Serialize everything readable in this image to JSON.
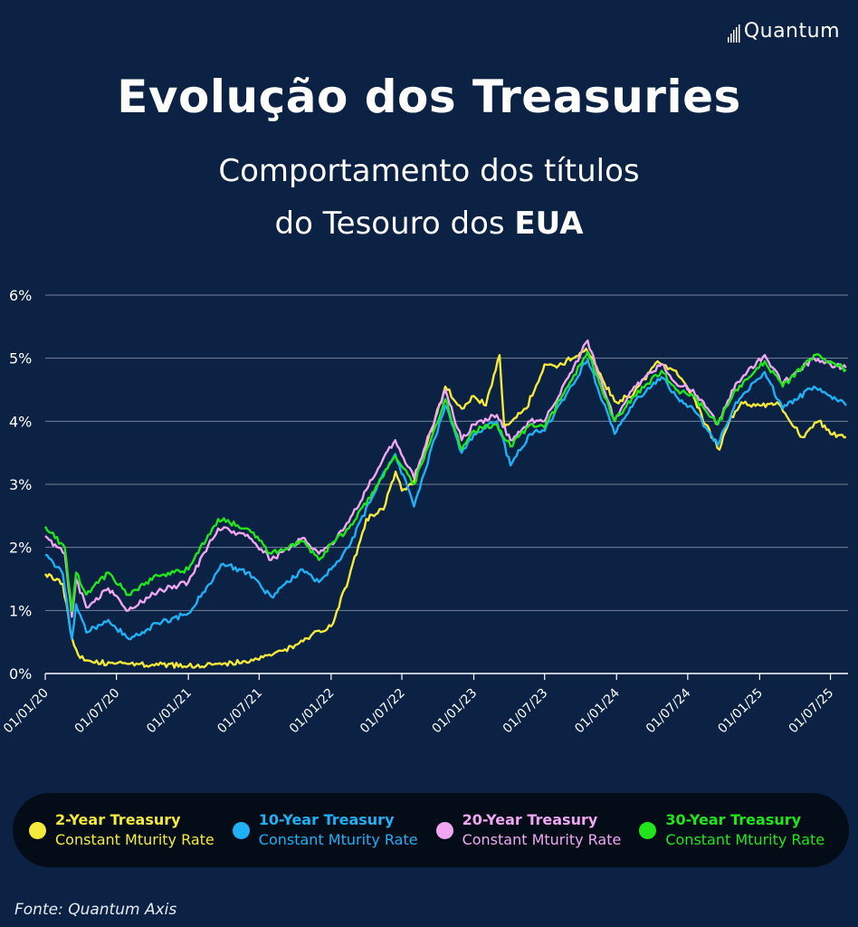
{
  "brand": {
    "name": "Quantum",
    "icon": "bar-logo-icon"
  },
  "header": {
    "title": "Evolução dos Treasuries",
    "subtitle_line1": "Comportamento dos títulos",
    "subtitle_line2_pre": "do Tesouro dos ",
    "subtitle_line2_bold": "EUA"
  },
  "legend": [
    {
      "name": "2-Year Treasury",
      "sub": "Constant Mturity Rate",
      "color": "#f5ea3b"
    },
    {
      "name": "10-Year Treasury",
      "sub": "Constant Mturity Rate",
      "color": "#1fb0f5"
    },
    {
      "name": "20-Year Treasury",
      "sub": "Constant Mturity Rate",
      "color": "#f0a6f0"
    },
    {
      "name": "30-Year Treasury",
      "sub": "Constant Mturity Rate",
      "color": "#22e61c"
    }
  ],
  "source": "Fonte: Quantum Axis",
  "chart_data": {
    "type": "line",
    "title": "Evolução dos Treasuries",
    "ylabel": "",
    "xlabel": "",
    "ylim": [
      0,
      6
    ],
    "xlim": [
      "2020-01-01",
      "2025-08-15"
    ],
    "y_ticks": [
      0,
      1,
      2,
      3,
      4,
      5,
      6
    ],
    "y_tick_labels": [
      "0%",
      "1%",
      "2%",
      "3%",
      "4%",
      "5%",
      "6%"
    ],
    "x_ticks": [
      "2020-01-01",
      "2020-07-01",
      "2021-01-01",
      "2021-07-01",
      "2022-01-01",
      "2022-07-01",
      "2023-01-01",
      "2023-07-01",
      "2024-01-01",
      "2024-07-01",
      "2025-01-01",
      "2025-07-01"
    ],
    "x_tick_labels": [
      "01/01/20",
      "01/07/20",
      "01/01/21",
      "01/07/21",
      "01/01/22",
      "01/07/22",
      "01/01/23",
      "01/07/23",
      "01/01/24",
      "01/07/24",
      "01/01/25",
      "01/07/25"
    ],
    "grid": true,
    "legend_position": "bottom",
    "series": [
      {
        "name": "2-Year Treasury",
        "color": "#f5ea3b",
        "points": [
          [
            "2020-01-01",
            1.58
          ],
          [
            "2020-02-15",
            1.42
          ],
          [
            "2020-03-10",
            0.55
          ],
          [
            "2020-03-25",
            0.3
          ],
          [
            "2020-05-01",
            0.18
          ],
          [
            "2020-07-01",
            0.16
          ],
          [
            "2020-10-01",
            0.14
          ],
          [
            "2021-01-01",
            0.12
          ],
          [
            "2021-04-01",
            0.16
          ],
          [
            "2021-07-01",
            0.22
          ],
          [
            "2021-10-01",
            0.45
          ],
          [
            "2021-12-01",
            0.68
          ],
          [
            "2022-01-01",
            0.75
          ],
          [
            "2022-02-15",
            1.5
          ],
          [
            "2022-04-01",
            2.45
          ],
          [
            "2022-05-15",
            2.6
          ],
          [
            "2022-06-15",
            3.2
          ],
          [
            "2022-07-01",
            2.9
          ],
          [
            "2022-08-01",
            3.05
          ],
          [
            "2022-09-01",
            3.6
          ],
          [
            "2022-10-20",
            4.55
          ],
          [
            "2022-12-01",
            4.2
          ],
          [
            "2023-01-01",
            4.4
          ],
          [
            "2023-02-01",
            4.25
          ],
          [
            "2023-03-08",
            5.05
          ],
          [
            "2023-03-20",
            3.9
          ],
          [
            "2023-04-15",
            4.05
          ],
          [
            "2023-05-15",
            4.2
          ],
          [
            "2023-07-01",
            4.9
          ],
          [
            "2023-08-01",
            4.85
          ],
          [
            "2023-10-15",
            5.15
          ],
          [
            "2023-12-01",
            4.6
          ],
          [
            "2024-01-01",
            4.3
          ],
          [
            "2024-02-15",
            4.45
          ],
          [
            "2024-04-15",
            4.95
          ],
          [
            "2024-06-01",
            4.8
          ],
          [
            "2024-07-15",
            4.4
          ],
          [
            "2024-08-15",
            3.95
          ],
          [
            "2024-09-20",
            3.55
          ],
          [
            "2024-10-15",
            4.0
          ],
          [
            "2024-11-15",
            4.3
          ],
          [
            "2025-01-01",
            4.25
          ],
          [
            "2025-02-15",
            4.3
          ],
          [
            "2025-04-01",
            3.9
          ],
          [
            "2025-04-20",
            3.75
          ],
          [
            "2025-06-01",
            4.0
          ],
          [
            "2025-07-01",
            3.8
          ],
          [
            "2025-08-10",
            3.75
          ]
        ]
      },
      {
        "name": "10-Year Treasury",
        "color": "#1fb0f5",
        "points": [
          [
            "2020-01-01",
            1.88
          ],
          [
            "2020-02-15",
            1.58
          ],
          [
            "2020-03-09",
            0.55
          ],
          [
            "2020-03-20",
            1.1
          ],
          [
            "2020-04-15",
            0.65
          ],
          [
            "2020-06-10",
            0.85
          ],
          [
            "2020-08-01",
            0.55
          ],
          [
            "2020-10-15",
            0.8
          ],
          [
            "2021-01-01",
            0.95
          ],
          [
            "2021-03-31",
            1.74
          ],
          [
            "2021-06-01",
            1.6
          ],
          [
            "2021-08-01",
            1.22
          ],
          [
            "2021-10-20",
            1.65
          ],
          [
            "2021-12-01",
            1.45
          ],
          [
            "2022-01-01",
            1.65
          ],
          [
            "2022-02-15",
            2.0
          ],
          [
            "2022-05-01",
            3.0
          ],
          [
            "2022-06-14",
            3.48
          ],
          [
            "2022-08-01",
            2.65
          ],
          [
            "2022-10-20",
            4.25
          ],
          [
            "2022-12-01",
            3.5
          ],
          [
            "2023-01-01",
            3.8
          ],
          [
            "2023-03-01",
            4.0
          ],
          [
            "2023-04-05",
            3.3
          ],
          [
            "2023-05-25",
            3.8
          ],
          [
            "2023-07-01",
            3.85
          ],
          [
            "2023-10-19",
            4.98
          ],
          [
            "2023-12-27",
            3.8
          ],
          [
            "2024-02-15",
            4.3
          ],
          [
            "2024-04-25",
            4.7
          ],
          [
            "2024-06-01",
            4.4
          ],
          [
            "2024-07-15",
            4.2
          ],
          [
            "2024-09-16",
            3.62
          ],
          [
            "2024-11-01",
            4.3
          ],
          [
            "2025-01-14",
            4.78
          ],
          [
            "2025-03-01",
            4.2
          ],
          [
            "2025-05-20",
            4.55
          ],
          [
            "2025-07-01",
            4.4
          ],
          [
            "2025-08-10",
            4.25
          ]
        ]
      },
      {
        "name": "20-Year Treasury",
        "color": "#f0a6f0",
        "points": [
          [
            "2020-01-01",
            2.18
          ],
          [
            "2020-02-20",
            1.9
          ],
          [
            "2020-03-09",
            0.9
          ],
          [
            "2020-03-20",
            1.5
          ],
          [
            "2020-04-15",
            1.05
          ],
          [
            "2020-06-10",
            1.35
          ],
          [
            "2020-08-01",
            1.0
          ],
          [
            "2020-10-15",
            1.3
          ],
          [
            "2021-01-01",
            1.45
          ],
          [
            "2021-03-18",
            2.3
          ],
          [
            "2021-06-01",
            2.2
          ],
          [
            "2021-08-01",
            1.8
          ],
          [
            "2021-10-20",
            2.15
          ],
          [
            "2021-12-01",
            1.9
          ],
          [
            "2022-01-01",
            2.05
          ],
          [
            "2022-02-15",
            2.4
          ],
          [
            "2022-05-01",
            3.25
          ],
          [
            "2022-06-14",
            3.7
          ],
          [
            "2022-08-01",
            3.1
          ],
          [
            "2022-10-20",
            4.5
          ],
          [
            "2022-12-01",
            3.7
          ],
          [
            "2023-01-01",
            3.95
          ],
          [
            "2023-03-01",
            4.1
          ],
          [
            "2023-04-05",
            3.7
          ],
          [
            "2023-05-25",
            4.0
          ],
          [
            "2023-07-01",
            4.0
          ],
          [
            "2023-10-19",
            5.28
          ],
          [
            "2023-12-27",
            4.0
          ],
          [
            "2024-02-15",
            4.55
          ],
          [
            "2024-04-25",
            4.9
          ],
          [
            "2024-06-01",
            4.6
          ],
          [
            "2024-07-15",
            4.5
          ],
          [
            "2024-09-16",
            3.95
          ],
          [
            "2024-11-01",
            4.6
          ],
          [
            "2025-01-14",
            5.05
          ],
          [
            "2025-03-01",
            4.6
          ],
          [
            "2025-05-20",
            5.0
          ],
          [
            "2025-07-01",
            4.9
          ],
          [
            "2025-08-10",
            4.85
          ]
        ]
      },
      {
        "name": "30-Year Treasury",
        "color": "#22e61c",
        "points": [
          [
            "2020-01-01",
            2.33
          ],
          [
            "2020-02-20",
            2.0
          ],
          [
            "2020-03-09",
            0.99
          ],
          [
            "2020-03-20",
            1.6
          ],
          [
            "2020-04-15",
            1.25
          ],
          [
            "2020-06-10",
            1.6
          ],
          [
            "2020-08-01",
            1.25
          ],
          [
            "2020-10-15",
            1.55
          ],
          [
            "2021-01-01",
            1.65
          ],
          [
            "2021-03-18",
            2.45
          ],
          [
            "2021-06-01",
            2.3
          ],
          [
            "2021-08-01",
            1.9
          ],
          [
            "2021-10-20",
            2.1
          ],
          [
            "2021-12-01",
            1.8
          ],
          [
            "2022-01-01",
            2.05
          ],
          [
            "2022-02-15",
            2.3
          ],
          [
            "2022-05-01",
            3.0
          ],
          [
            "2022-06-14",
            3.45
          ],
          [
            "2022-08-01",
            3.0
          ],
          [
            "2022-10-20",
            4.35
          ],
          [
            "2022-12-01",
            3.55
          ],
          [
            "2023-01-01",
            3.85
          ],
          [
            "2023-03-01",
            3.95
          ],
          [
            "2023-04-05",
            3.6
          ],
          [
            "2023-05-25",
            3.95
          ],
          [
            "2023-07-01",
            3.9
          ],
          [
            "2023-10-19",
            5.1
          ],
          [
            "2023-12-27",
            4.0
          ],
          [
            "2024-02-15",
            4.4
          ],
          [
            "2024-04-25",
            4.8
          ],
          [
            "2024-06-01",
            4.5
          ],
          [
            "2024-07-15",
            4.4
          ],
          [
            "2024-09-16",
            3.95
          ],
          [
            "2024-11-01",
            4.5
          ],
          [
            "2025-01-14",
            4.95
          ],
          [
            "2025-03-01",
            4.55
          ],
          [
            "2025-05-20",
            5.05
          ],
          [
            "2025-07-01",
            4.95
          ],
          [
            "2025-08-10",
            4.82
          ]
        ]
      }
    ]
  }
}
